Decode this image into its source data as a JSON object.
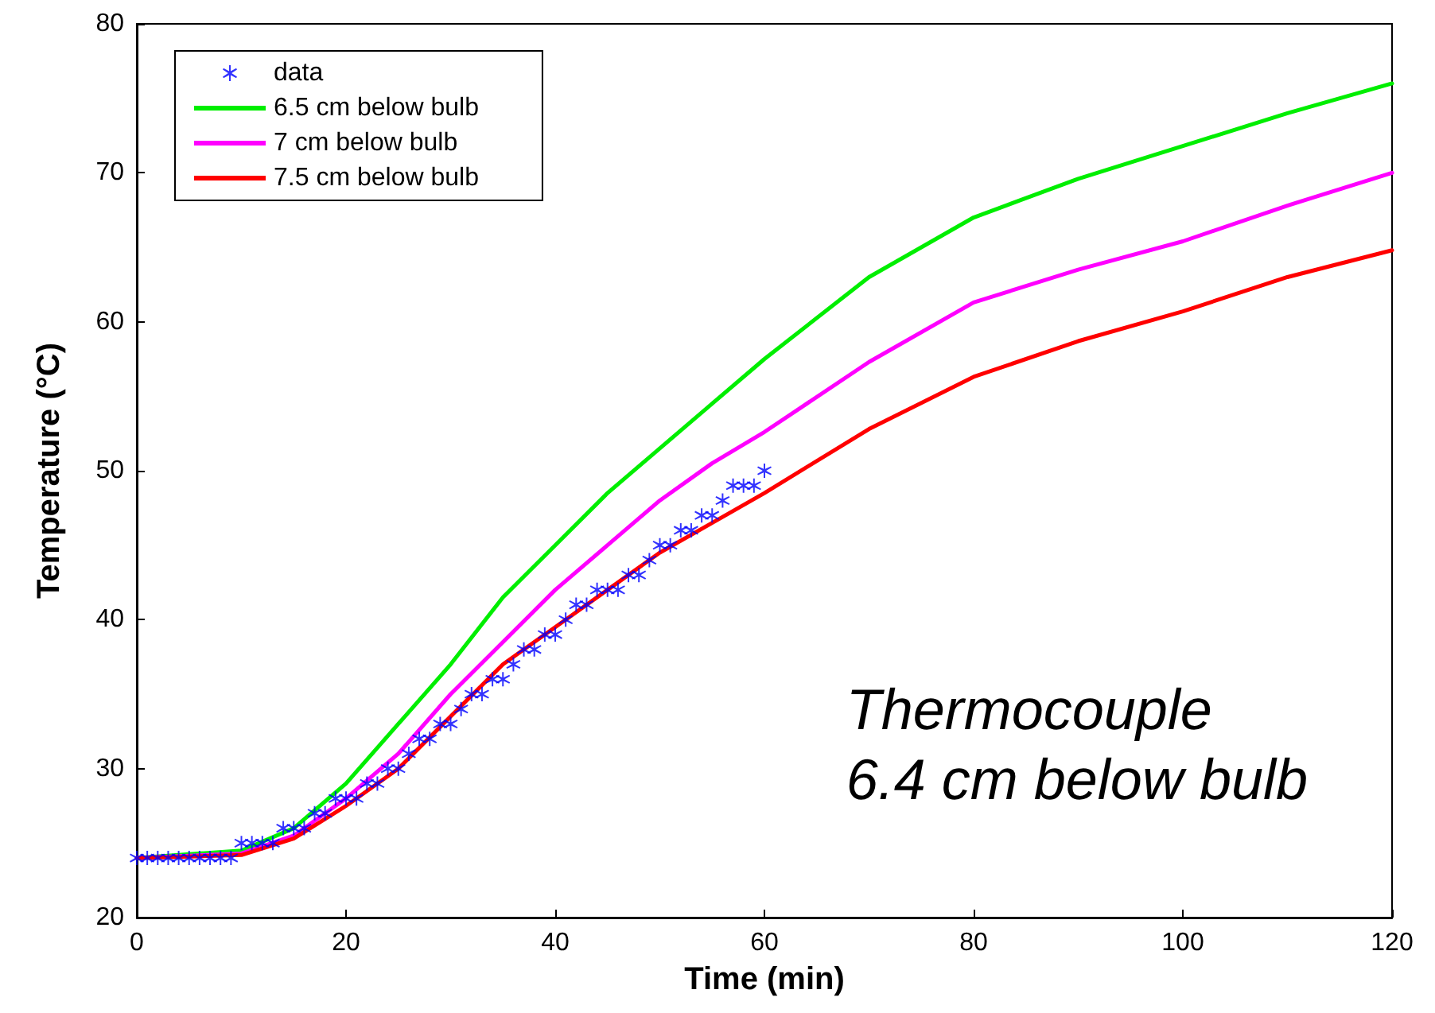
{
  "chart_data": {
    "type": "line",
    "xlabel": "Time (min)",
    "ylabel": "Temperature (°C)",
    "xlim": [
      0,
      120
    ],
    "xticks": [
      0,
      20,
      40,
      60,
      80,
      100,
      120
    ],
    "ylim": [
      20,
      80
    ],
    "yticks": [
      20,
      30,
      40,
      50,
      60,
      70,
      80
    ],
    "grid": false,
    "legend": "top left",
    "annotations": [
      "Thermocouple\n6.4 cm below bulb"
    ],
    "series": [
      {
        "name": "data",
        "type": "scatter",
        "marker": "star",
        "color": "#0000ff",
        "x": [
          0,
          1,
          2,
          3,
          4,
          5,
          6,
          7,
          8,
          9,
          10,
          11,
          12,
          13,
          14,
          15,
          16,
          17,
          18,
          19,
          20,
          21,
          22,
          23,
          24,
          25,
          26,
          27,
          28,
          29,
          30,
          31,
          32,
          33,
          34,
          35,
          36,
          37,
          38,
          39,
          40,
          41,
          42,
          43,
          44,
          45,
          46,
          47,
          48,
          49,
          50,
          51,
          52,
          53,
          54,
          55,
          56,
          57,
          58,
          59,
          60
        ],
        "values": [
          24,
          24,
          24,
          24,
          24,
          24,
          24,
          24,
          24,
          24,
          25,
          25,
          25,
          25,
          26,
          26,
          26,
          27,
          27,
          28,
          28,
          28,
          29,
          29,
          30,
          30,
          31,
          32,
          32,
          33,
          33,
          34,
          35,
          35,
          36,
          36,
          37,
          38,
          38,
          39,
          39,
          40,
          41,
          41,
          42,
          42,
          42,
          43,
          43,
          44,
          45,
          45,
          46,
          46,
          47,
          47,
          48,
          49,
          49,
          49,
          50
        ]
      },
      {
        "name": "6.5 cm below bulb",
        "type": "line",
        "color": "#00ee00",
        "x": [
          0,
          10,
          15,
          20,
          25,
          30,
          35,
          40,
          45,
          50,
          55,
          60,
          70,
          80,
          90,
          100,
          110,
          120
        ],
        "values": [
          24,
          24.5,
          26,
          29,
          33,
          37,
          41.5,
          45,
          48.5,
          51.5,
          54.5,
          57.5,
          63,
          67,
          69.6,
          71.8,
          74,
          76
        ]
      },
      {
        "name": "7 cm below bulb",
        "type": "line",
        "color": "#ff00ff",
        "x": [
          0,
          10,
          15,
          20,
          25,
          30,
          35,
          40,
          45,
          50,
          55,
          60,
          70,
          80,
          90,
          100,
          110,
          120
        ],
        "values": [
          24,
          24.3,
          25.5,
          28,
          31,
          35,
          38.5,
          42,
          45,
          48,
          50.5,
          52.6,
          57.3,
          61.3,
          63.5,
          65.4,
          67.8,
          70
        ]
      },
      {
        "name": "7.5 cm below bulb",
        "type": "line",
        "color": "#ff0000",
        "x": [
          0,
          10,
          15,
          20,
          25,
          30,
          35,
          40,
          45,
          50,
          55,
          60,
          70,
          80,
          90,
          100,
          110,
          120
        ],
        "values": [
          24,
          24.2,
          25.3,
          27.5,
          30,
          33.5,
          37,
          39.5,
          42,
          44.5,
          46.5,
          48.5,
          52.8,
          56.3,
          58.7,
          60.7,
          63,
          64.8
        ]
      }
    ]
  }
}
